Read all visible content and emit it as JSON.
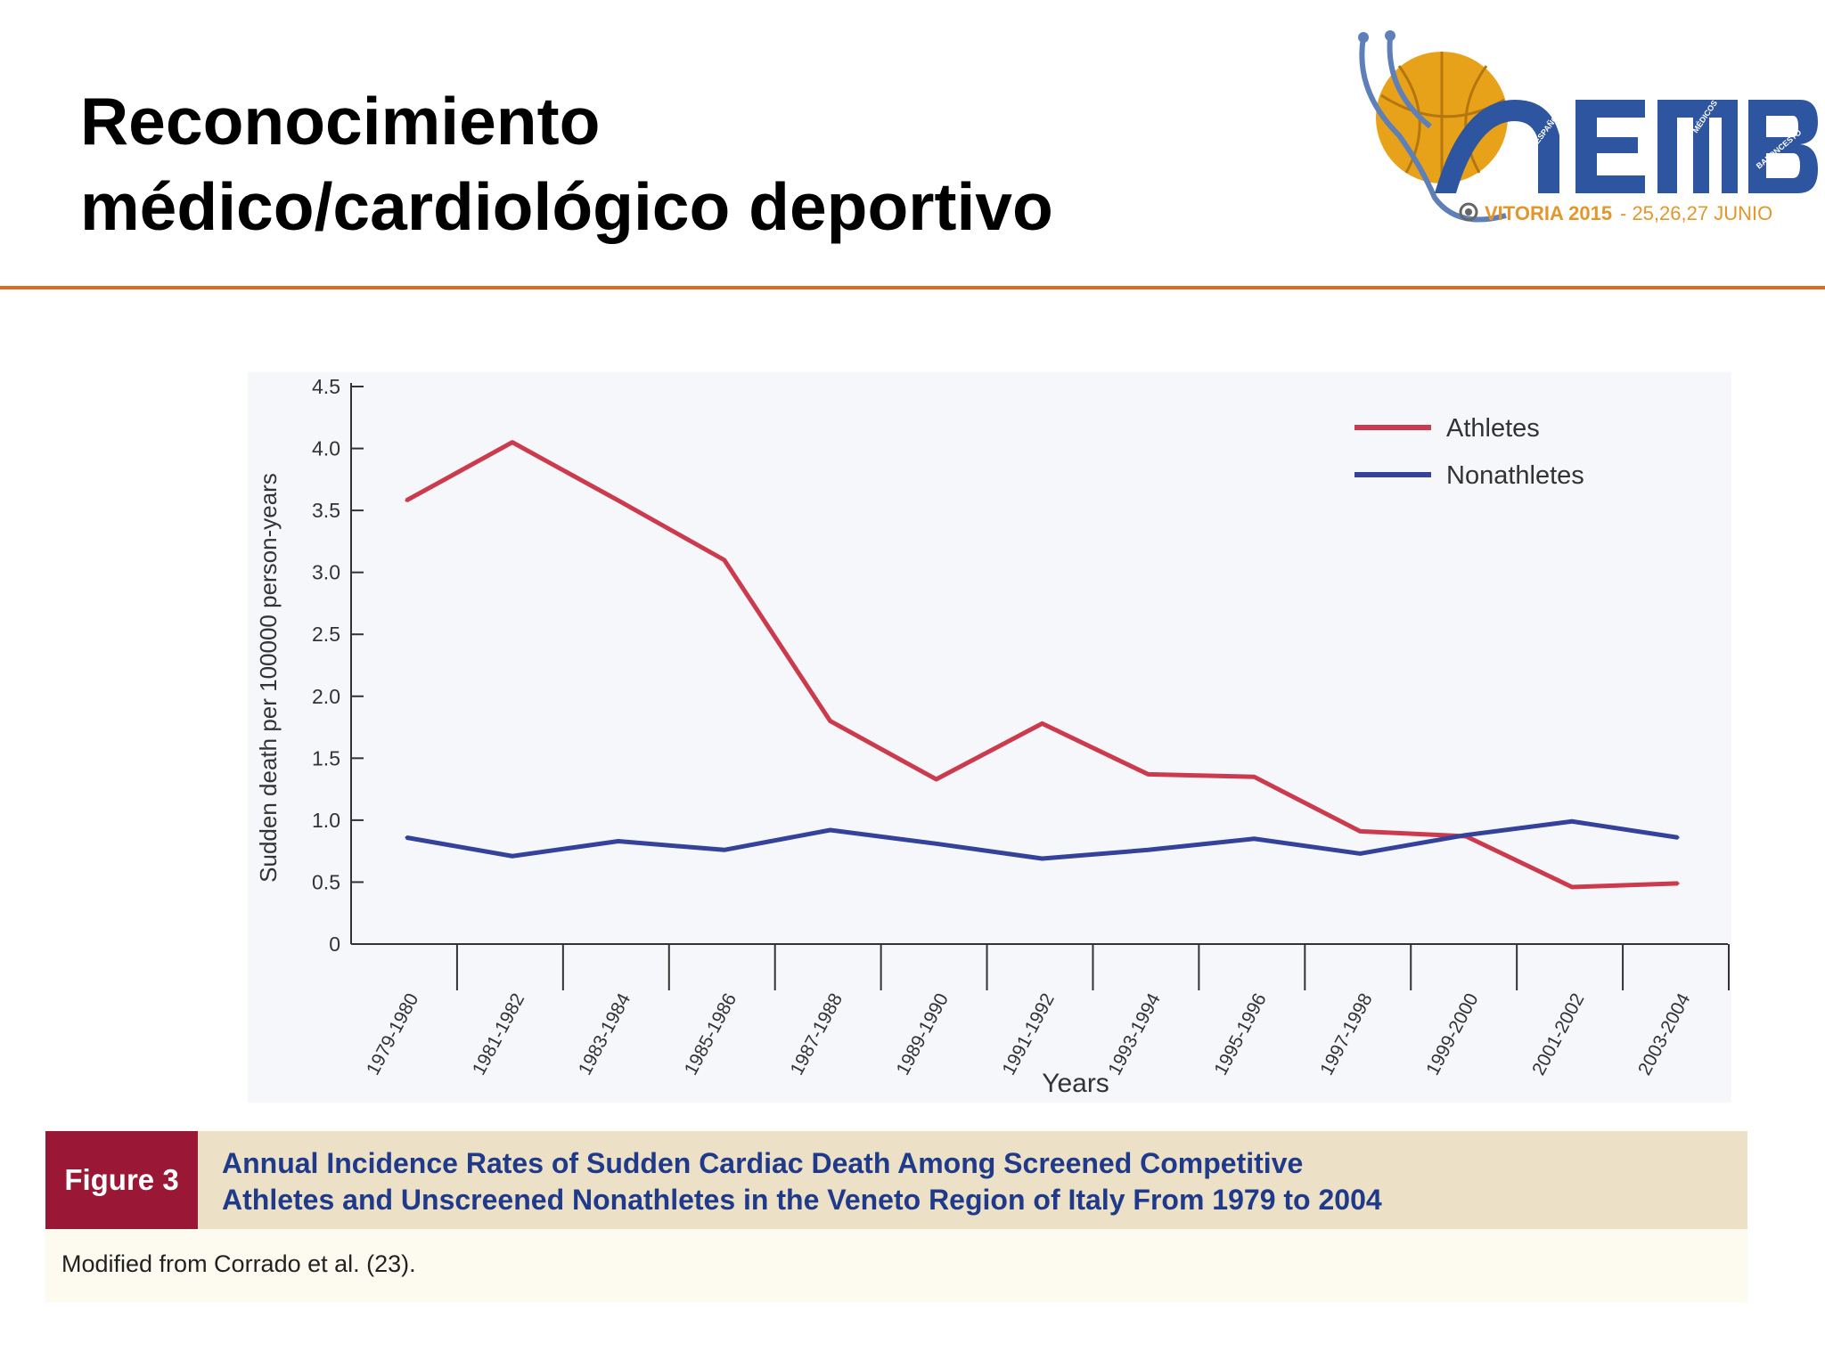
{
  "slide": {
    "title_line1": "Reconocimiento",
    "title_line2": "médico/cardiológico deportivo"
  },
  "logo": {
    "letters": "AEMB",
    "ring_text": [
      "ASOCIACIÓN",
      "ESPAÑOLA",
      "MÉDICOS",
      "BALONCESTO"
    ],
    "event": "VITORIA 2015",
    "dates": "- 25,26,27 JUNIO",
    "colors": {
      "ball": "#e8a21a",
      "letters": "#2d55a0",
      "event": "#e3962a"
    }
  },
  "chart_data": {
    "type": "line",
    "title": "",
    "xlabel": "Years",
    "ylabel": "Sudden death per 100000 person-years",
    "ylim": [
      0,
      4.5
    ],
    "yticks": [
      0,
      0.5,
      1.0,
      1.5,
      2.0,
      2.5,
      3.0,
      3.5,
      4.0,
      4.5
    ],
    "ytick_labels": [
      "0",
      "0.5",
      "1.0",
      "1.5",
      "2.0",
      "2.5",
      "3.0",
      "3.5",
      "4.0",
      "4.5"
    ],
    "categories": [
      "1979-1980",
      "1981-1982",
      "1983-1984",
      "1985-1986",
      "1987-1988",
      "1989-1990",
      "1991-1992",
      "1993-1994",
      "1995-1996",
      "1997-1998",
      "1999-2000",
      "2001-2002",
      "2003-2004"
    ],
    "series": [
      {
        "name": "Athletes",
        "color": "#cc3b4d",
        "values": [
          3.58,
          4.05,
          3.58,
          3.1,
          1.8,
          1.33,
          1.78,
          1.37,
          1.35,
          0.91,
          0.87,
          0.46,
          0.49
        ]
      },
      {
        "name": "Nonathletes",
        "color": "#34429b",
        "values": [
          0.86,
          0.71,
          0.83,
          0.76,
          0.92,
          0.81,
          0.69,
          0.76,
          0.85,
          0.73,
          0.88,
          0.99,
          0.86
        ]
      }
    ],
    "legend_position": "top-right",
    "grid": false
  },
  "figure": {
    "badge": "Figure 3",
    "caption_line1": "Annual Incidence Rates of Sudden Cardiac Death Among Screened Competitive",
    "caption_line2": "Athletes and Unscreened Nonathletes in the Veneto Region of Italy From 1979 to 2004",
    "source": "Modified from Corrado et al. (23).",
    "colors": {
      "badge": "#9a1836",
      "band": "#ece1c6",
      "caption": "#1f3a8a"
    }
  }
}
